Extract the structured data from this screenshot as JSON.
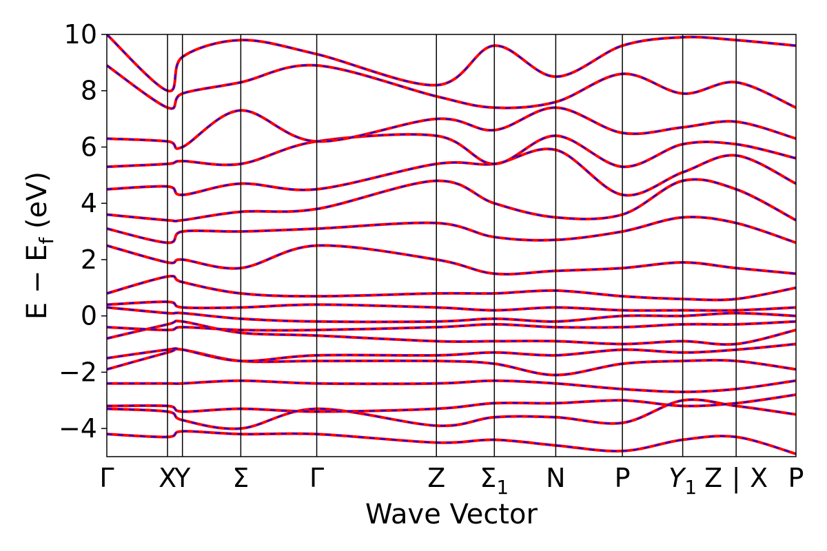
{
  "chart_data": {
    "type": "line",
    "xlabel": "Wave Vector",
    "ylabel": "E − E_f (eV)",
    "ylim": [
      -5,
      10
    ],
    "yticks": [
      -4,
      -2,
      0,
      2,
      4,
      6,
      8,
      10
    ],
    "ytick_labels": [
      "−4",
      "−2",
      "0",
      "2",
      "4",
      "6",
      "8",
      "10"
    ],
    "kpath": [
      {
        "label": "Γ",
        "x": 0.0
      },
      {
        "label": "X",
        "x": 0.893
      },
      {
        "label": "Y",
        "x": 1.112
      },
      {
        "label": "Σ",
        "x": 1.97
      },
      {
        "label": "Γ",
        "x": 3.087
      },
      {
        "label": "Z",
        "x": 4.847
      },
      {
        "label": "Σ1",
        "x": 5.699
      },
      {
        "label": "N",
        "x": 6.602
      },
      {
        "label": "P",
        "x": 7.582
      },
      {
        "label": "Y1",
        "x": 8.469
      },
      {
        "label": "Z",
        "x": 9.255
      },
      {
        "label": "X",
        "x": 9.255
      },
      {
        "label": "P",
        "x": 10.135
      }
    ],
    "path_break_label": "|",
    "legend": "none",
    "grid": false,
    "series_styles": [
      {
        "color": "#ff0000",
        "linestyle": "solid"
      },
      {
        "color": "#0000ff",
        "linestyle": "dashed"
      }
    ],
    "bands_sampled": [
      {
        "name": "",
        "x": [
          0.0,
          0.893,
          1.112,
          1.97,
          3.087,
          4.847,
          5.699,
          6.602,
          7.582,
          8.469,
          9.255,
          10.135
        ],
        "y": [
          -4.2,
          -4.3,
          -4.1,
          -4.2,
          -4.2,
          -4.5,
          -4.4,
          -4.6,
          -4.8,
          -4.4,
          -4.3,
          -4.9
        ]
      },
      {
        "name": "",
        "x": [
          0.0,
          0.893,
          1.112,
          1.97,
          3.087,
          4.847,
          5.699,
          6.602,
          7.582,
          8.469,
          9.255,
          10.135
        ],
        "y": [
          -3.3,
          -3.4,
          -3.7,
          -4.0,
          -3.3,
          -3.9,
          -3.6,
          -3.6,
          -3.8,
          -3.0,
          -3.2,
          -3.5
        ]
      },
      {
        "name": "",
        "x": [
          0.0,
          0.893,
          1.112,
          1.97,
          3.087,
          4.847,
          5.699,
          6.602,
          7.582,
          8.469,
          9.255,
          10.135
        ],
        "y": [
          -3.2,
          -3.2,
          -3.4,
          -3.3,
          -3.4,
          -3.3,
          -3.1,
          -3.1,
          -3.0,
          -3.2,
          -3.1,
          -2.8
        ]
      },
      {
        "name": "",
        "x": [
          0.0,
          0.893,
          1.112,
          1.97,
          3.087,
          4.847,
          5.699,
          6.602,
          7.582,
          8.469,
          9.255,
          10.135
        ],
        "y": [
          -2.4,
          -2.4,
          -2.4,
          -2.3,
          -2.4,
          -2.4,
          -2.3,
          -2.4,
          -2.6,
          -2.7,
          -2.6,
          -2.3
        ]
      },
      {
        "name": "",
        "x": [
          0.0,
          0.893,
          1.112,
          1.97,
          3.087,
          4.847,
          5.699,
          6.602,
          7.582,
          8.469,
          9.255,
          10.135
        ],
        "y": [
          -1.9,
          -1.3,
          -1.2,
          -1.6,
          -1.6,
          -1.6,
          -1.7,
          -2.1,
          -1.7,
          -1.6,
          -1.6,
          -1.9
        ]
      },
      {
        "name": "",
        "x": [
          0.0,
          0.893,
          1.112,
          1.97,
          3.087,
          4.847,
          5.699,
          6.602,
          7.582,
          8.469,
          9.255,
          10.135
        ],
        "y": [
          -1.5,
          -1.2,
          -1.2,
          -1.6,
          -1.4,
          -1.4,
          -1.3,
          -1.4,
          -1.2,
          -1.3,
          -1.2,
          -1.0
        ]
      },
      {
        "name": "",
        "x": [
          0.0,
          0.893,
          1.112,
          1.97,
          3.087,
          4.847,
          5.699,
          6.602,
          7.582,
          8.469,
          9.255,
          10.135
        ],
        "y": [
          -0.8,
          -0.3,
          -0.2,
          -0.6,
          -0.7,
          -0.9,
          -0.9,
          -0.9,
          -1.0,
          -0.9,
          -1.0,
          -0.5
        ]
      },
      {
        "name": "",
        "x": [
          0.0,
          0.893,
          1.112,
          1.97,
          3.087,
          4.847,
          5.699,
          6.602,
          7.582,
          8.469,
          9.255,
          10.135
        ],
        "y": [
          -0.4,
          -0.5,
          -0.4,
          -0.5,
          -0.5,
          -0.4,
          -0.3,
          -0.4,
          -0.4,
          -0.3,
          -0.3,
          -0.2
        ]
      },
      {
        "name": "",
        "x": [
          0.0,
          0.893,
          1.112,
          1.97,
          3.087,
          4.847,
          5.699,
          6.602,
          7.582,
          8.469,
          9.255,
          10.135
        ],
        "y": [
          0.3,
          0.1,
          0.1,
          -0.1,
          -0.2,
          -0.2,
          -0.1,
          -0.2,
          0.0,
          0.0,
          0.1,
          0.0
        ]
      },
      {
        "name": "",
        "x": [
          0.0,
          0.893,
          1.112,
          1.97,
          3.087,
          4.847,
          5.699,
          6.602,
          7.582,
          8.469,
          9.255,
          10.135
        ],
        "y": [
          0.4,
          0.5,
          0.3,
          0.3,
          0.4,
          0.3,
          0.2,
          0.3,
          0.2,
          0.2,
          0.2,
          0.3
        ]
      },
      {
        "name": "",
        "x": [
          0.0,
          0.893,
          1.112,
          1.97,
          3.087,
          4.847,
          5.699,
          6.602,
          7.582,
          8.469,
          9.255,
          10.135
        ],
        "y": [
          0.8,
          1.4,
          1.2,
          0.8,
          0.7,
          0.8,
          0.8,
          0.9,
          0.7,
          0.6,
          0.6,
          1.0
        ]
      },
      {
        "name": "",
        "x": [
          0.0,
          0.893,
          1.112,
          1.97,
          3.087,
          4.847,
          5.699,
          6.602,
          7.582,
          8.469,
          9.255,
          10.135
        ],
        "y": [
          2.5,
          1.9,
          2.0,
          1.7,
          2.5,
          2.0,
          1.5,
          1.6,
          1.7,
          1.9,
          1.7,
          1.5
        ]
      },
      {
        "name": "",
        "x": [
          0.0,
          0.893,
          1.112,
          1.97,
          3.087,
          4.847,
          5.699,
          6.602,
          7.582,
          8.469,
          9.255,
          10.135
        ],
        "y": [
          3.1,
          2.6,
          3.0,
          3.0,
          3.1,
          3.3,
          2.8,
          2.7,
          3.0,
          3.5,
          3.3,
          2.6
        ]
      },
      {
        "name": "",
        "x": [
          0.0,
          0.893,
          1.112,
          1.97,
          3.087,
          4.847,
          5.699,
          6.602,
          7.582,
          8.469,
          9.255,
          10.135
        ],
        "y": [
          3.6,
          3.4,
          3.4,
          3.7,
          3.8,
          4.8,
          4.0,
          3.5,
          3.6,
          4.8,
          4.5,
          3.4
        ]
      },
      {
        "name": "",
        "x": [
          0.0,
          0.893,
          1.112,
          1.97,
          3.087,
          4.847,
          5.699,
          6.602,
          7.582,
          8.469,
          9.255,
          10.135
        ],
        "y": [
          4.5,
          4.6,
          4.3,
          4.7,
          4.5,
          5.4,
          5.4,
          5.9,
          4.3,
          5.1,
          5.7,
          4.7
        ]
      },
      {
        "name": "",
        "x": [
          0.0,
          0.893,
          1.112,
          1.97,
          3.087,
          4.847,
          5.699,
          6.602,
          7.582,
          8.469,
          9.255,
          10.135
        ],
        "y": [
          5.3,
          5.4,
          5.5,
          5.4,
          6.2,
          6.4,
          5.4,
          6.4,
          5.3,
          6.1,
          6.1,
          5.6
        ]
      },
      {
        "name": "",
        "x": [
          0.0,
          0.893,
          1.112,
          1.97,
          3.087,
          4.847,
          5.699,
          6.602,
          7.582,
          8.469,
          9.255,
          10.135
        ],
        "y": [
          6.3,
          6.2,
          6.0,
          7.3,
          6.2,
          7.0,
          6.6,
          7.4,
          6.5,
          6.7,
          6.9,
          6.3
        ]
      },
      {
        "name": "",
        "x": [
          0.0,
          0.893,
          1.112,
          1.97,
          3.087,
          4.847,
          5.699,
          6.602,
          7.582,
          8.469,
          9.255,
          10.135
        ],
        "y": [
          8.9,
          7.4,
          7.9,
          8.3,
          8.9,
          7.8,
          7.4,
          7.6,
          8.6,
          7.9,
          8.3,
          7.4
        ]
      },
      {
        "name": "",
        "x": [
          0.0,
          0.893,
          1.112,
          1.97,
          3.087,
          4.847,
          5.699,
          6.602,
          7.582,
          8.469,
          9.255,
          10.135
        ],
        "y": [
          10.0,
          8.0,
          9.2,
          9.8,
          9.3,
          8.2,
          9.6,
          8.5,
          9.6,
          9.9,
          9.8,
          9.6
        ]
      }
    ]
  }
}
